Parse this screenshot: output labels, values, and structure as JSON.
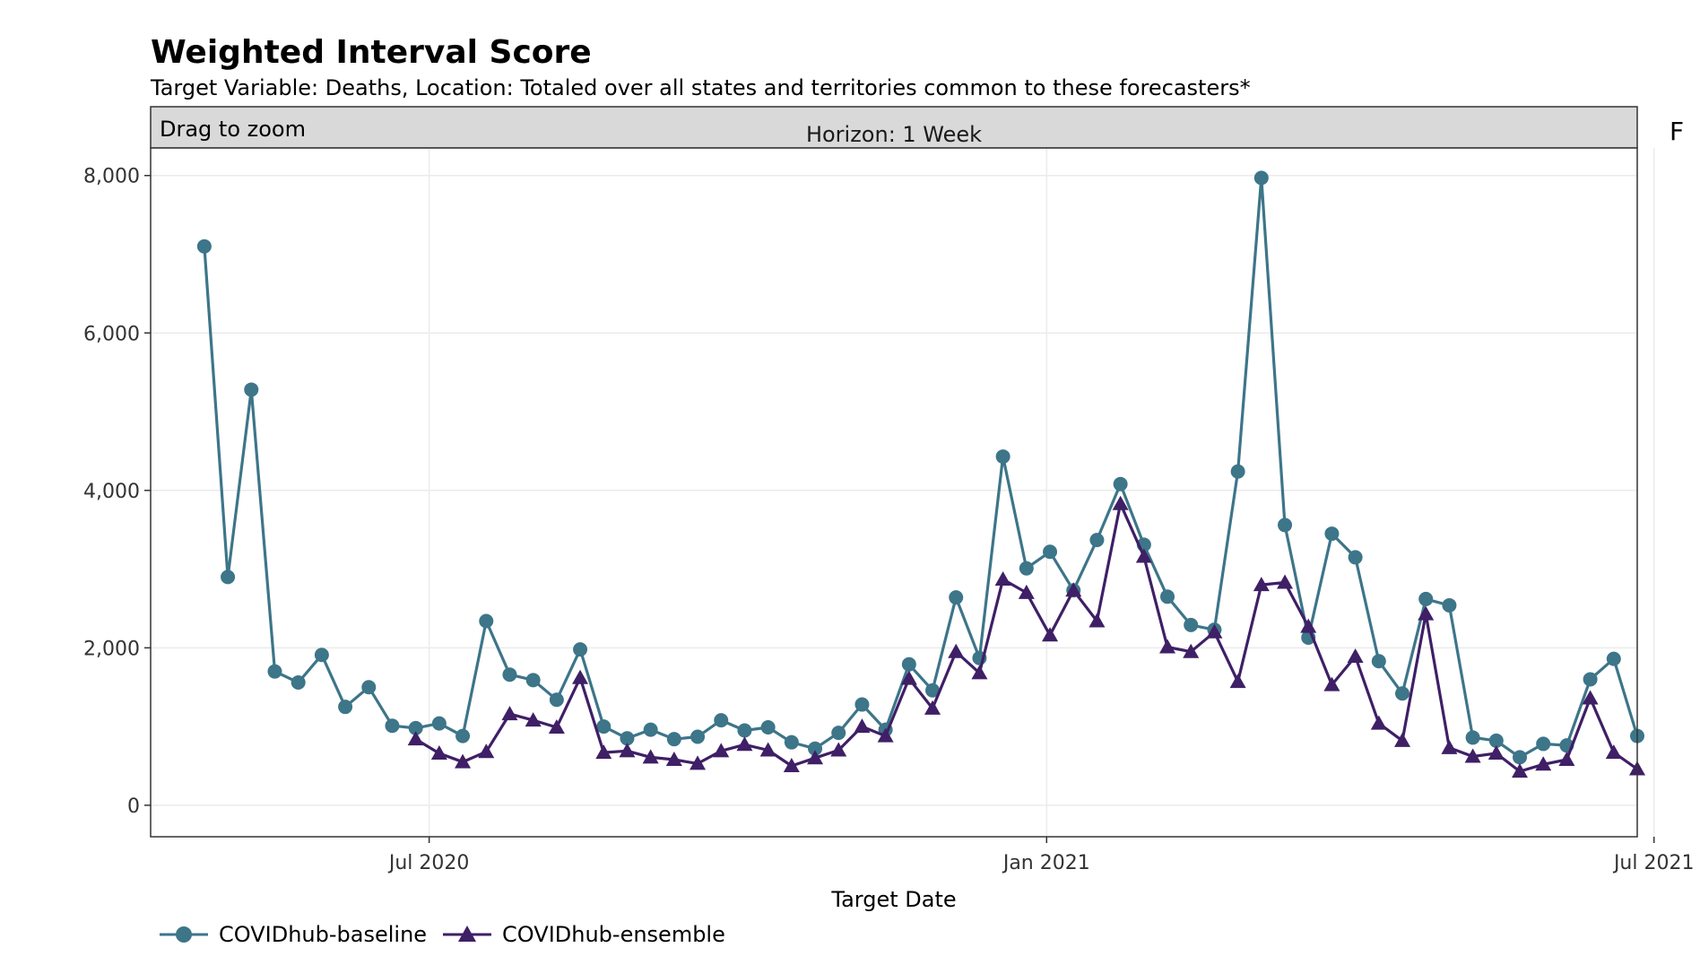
{
  "title": "Weighted Interval Score",
  "subtitle": "Target Variable: Deaths, Location: Totaled over all states and territories common to these forecasters*",
  "truncated_right_text": "F",
  "zoom_hint": "Drag to zoom",
  "colors": {
    "baseline": "#3d7589",
    "ensemble": "#3f1f66",
    "grid": "#ebebeb",
    "strip": "#d9d9d9",
    "border": "#333333"
  },
  "chart_data": {
    "type": "line",
    "title": "Weighted Interval Score",
    "subtitle": "Target Variable: Deaths, Location: Totaled over all states and territories common to these forecasters*",
    "facet": "Horizon: 1 Week",
    "xlabel": "Target Date",
    "ylabel": "",
    "xlim": [
      "2020-04-09",
      "2021-06-26"
    ],
    "ylim": [
      -400,
      8350
    ],
    "x_ticks": [
      {
        "date": "2020-07-01",
        "label": "Jul 2020"
      },
      {
        "date": "2021-01-01",
        "label": "Jan 2021"
      },
      {
        "date": "2021-07-01",
        "label": "Jul 2021"
      }
    ],
    "y_ticks": [
      {
        "value": 0,
        "label": "0"
      },
      {
        "value": 2000,
        "label": "2,000"
      },
      {
        "value": 4000,
        "label": "4,000"
      },
      {
        "value": 6000,
        "label": "6,000"
      },
      {
        "value": 8000,
        "label": "8,000"
      }
    ],
    "grid": true,
    "legend_position": "bottom-left",
    "series": [
      {
        "name": "COVIDhub-baseline",
        "marker": "circle",
        "color": "#3d7589",
        "points": [
          [
            "2020-04-25",
            7100
          ],
          [
            "2020-05-02",
            2900
          ],
          [
            "2020-05-09",
            5280
          ],
          [
            "2020-05-16",
            1700
          ],
          [
            "2020-05-23",
            1560
          ],
          [
            "2020-05-30",
            1910
          ],
          [
            "2020-06-06",
            1250
          ],
          [
            "2020-06-13",
            1500
          ],
          [
            "2020-06-20",
            1010
          ],
          [
            "2020-06-27",
            980
          ],
          [
            "2020-07-04",
            1040
          ],
          [
            "2020-07-11",
            880
          ],
          [
            "2020-07-18",
            2340
          ],
          [
            "2020-07-25",
            1660
          ],
          [
            "2020-08-01",
            1590
          ],
          [
            "2020-08-08",
            1340
          ],
          [
            "2020-08-15",
            1980
          ],
          [
            "2020-08-22",
            1000
          ],
          [
            "2020-08-29",
            850
          ],
          [
            "2020-09-05",
            960
          ],
          [
            "2020-09-12",
            840
          ],
          [
            "2020-09-19",
            870
          ],
          [
            "2020-09-26",
            1080
          ],
          [
            "2020-10-03",
            950
          ],
          [
            "2020-10-10",
            990
          ],
          [
            "2020-10-17",
            800
          ],
          [
            "2020-10-24",
            720
          ],
          [
            "2020-10-31",
            920
          ],
          [
            "2020-11-07",
            1280
          ],
          [
            "2020-11-14",
            960
          ],
          [
            "2020-11-21",
            1790
          ],
          [
            "2020-11-28",
            1460
          ],
          [
            "2020-12-05",
            2640
          ],
          [
            "2020-12-12",
            1870
          ],
          [
            "2020-12-19",
            4430
          ],
          [
            "2020-12-26",
            3010
          ],
          [
            "2021-01-02",
            3220
          ],
          [
            "2021-01-09",
            2730
          ],
          [
            "2021-01-16",
            3370
          ],
          [
            "2021-01-23",
            4080
          ],
          [
            "2021-01-30",
            3310
          ],
          [
            "2021-02-06",
            2650
          ],
          [
            "2021-02-13",
            2290
          ],
          [
            "2021-02-20",
            2230
          ],
          [
            "2021-02-27",
            4240
          ],
          [
            "2021-03-06",
            7970
          ],
          [
            "2021-03-13",
            3560
          ],
          [
            "2021-03-20",
            2130
          ],
          [
            "2021-03-27",
            3450
          ],
          [
            "2021-04-03",
            3150
          ],
          [
            "2021-04-10",
            1830
          ],
          [
            "2021-04-17",
            1420
          ],
          [
            "2021-04-24",
            2620
          ],
          [
            "2021-05-01",
            2540
          ],
          [
            "2021-05-08",
            860
          ],
          [
            "2021-05-15",
            820
          ],
          [
            "2021-05-22",
            610
          ],
          [
            "2021-05-29",
            780
          ],
          [
            "2021-06-05",
            760
          ],
          [
            "2021-06-12",
            1600
          ],
          [
            "2021-06-19",
            1860
          ],
          [
            "2021-06-26",
            880
          ]
        ]
      },
      {
        "name": "COVIDhub-ensemble",
        "marker": "triangle",
        "color": "#3f1f66",
        "points": [
          [
            "2020-06-27",
            840
          ],
          [
            "2020-07-04",
            660
          ],
          [
            "2020-07-11",
            550
          ],
          [
            "2020-07-18",
            680
          ],
          [
            "2020-07-25",
            1160
          ],
          [
            "2020-08-01",
            1080
          ],
          [
            "2020-08-08",
            990
          ],
          [
            "2020-08-15",
            1620
          ],
          [
            "2020-08-22",
            670
          ],
          [
            "2020-08-29",
            690
          ],
          [
            "2020-09-05",
            610
          ],
          [
            "2020-09-12",
            580
          ],
          [
            "2020-09-19",
            530
          ],
          [
            "2020-09-26",
            690
          ],
          [
            "2020-10-03",
            770
          ],
          [
            "2020-10-10",
            700
          ],
          [
            "2020-10-17",
            500
          ],
          [
            "2020-10-24",
            600
          ],
          [
            "2020-10-31",
            700
          ],
          [
            "2020-11-07",
            1000
          ],
          [
            "2020-11-14",
            880
          ],
          [
            "2020-11-21",
            1610
          ],
          [
            "2020-11-28",
            1230
          ],
          [
            "2020-12-05",
            1950
          ],
          [
            "2020-12-12",
            1680
          ],
          [
            "2020-12-19",
            2870
          ],
          [
            "2020-12-26",
            2700
          ],
          [
            "2021-01-02",
            2160
          ],
          [
            "2021-01-09",
            2730
          ],
          [
            "2021-01-16",
            2340
          ],
          [
            "2021-01-23",
            3830
          ],
          [
            "2021-01-30",
            3160
          ],
          [
            "2021-02-06",
            2010
          ],
          [
            "2021-02-13",
            1950
          ],
          [
            "2021-02-20",
            2200
          ],
          [
            "2021-02-27",
            1570
          ],
          [
            "2021-03-06",
            2800
          ],
          [
            "2021-03-13",
            2830
          ],
          [
            "2021-03-20",
            2270
          ],
          [
            "2021-03-27",
            1530
          ],
          [
            "2021-04-03",
            1890
          ],
          [
            "2021-04-10",
            1040
          ],
          [
            "2021-04-17",
            820
          ],
          [
            "2021-04-24",
            2430
          ],
          [
            "2021-05-01",
            730
          ],
          [
            "2021-05-08",
            620
          ],
          [
            "2021-05-15",
            660
          ],
          [
            "2021-05-22",
            430
          ],
          [
            "2021-05-29",
            520
          ],
          [
            "2021-06-05",
            580
          ],
          [
            "2021-06-12",
            1360
          ],
          [
            "2021-06-19",
            670
          ],
          [
            "2021-06-26",
            460
          ]
        ]
      }
    ]
  }
}
